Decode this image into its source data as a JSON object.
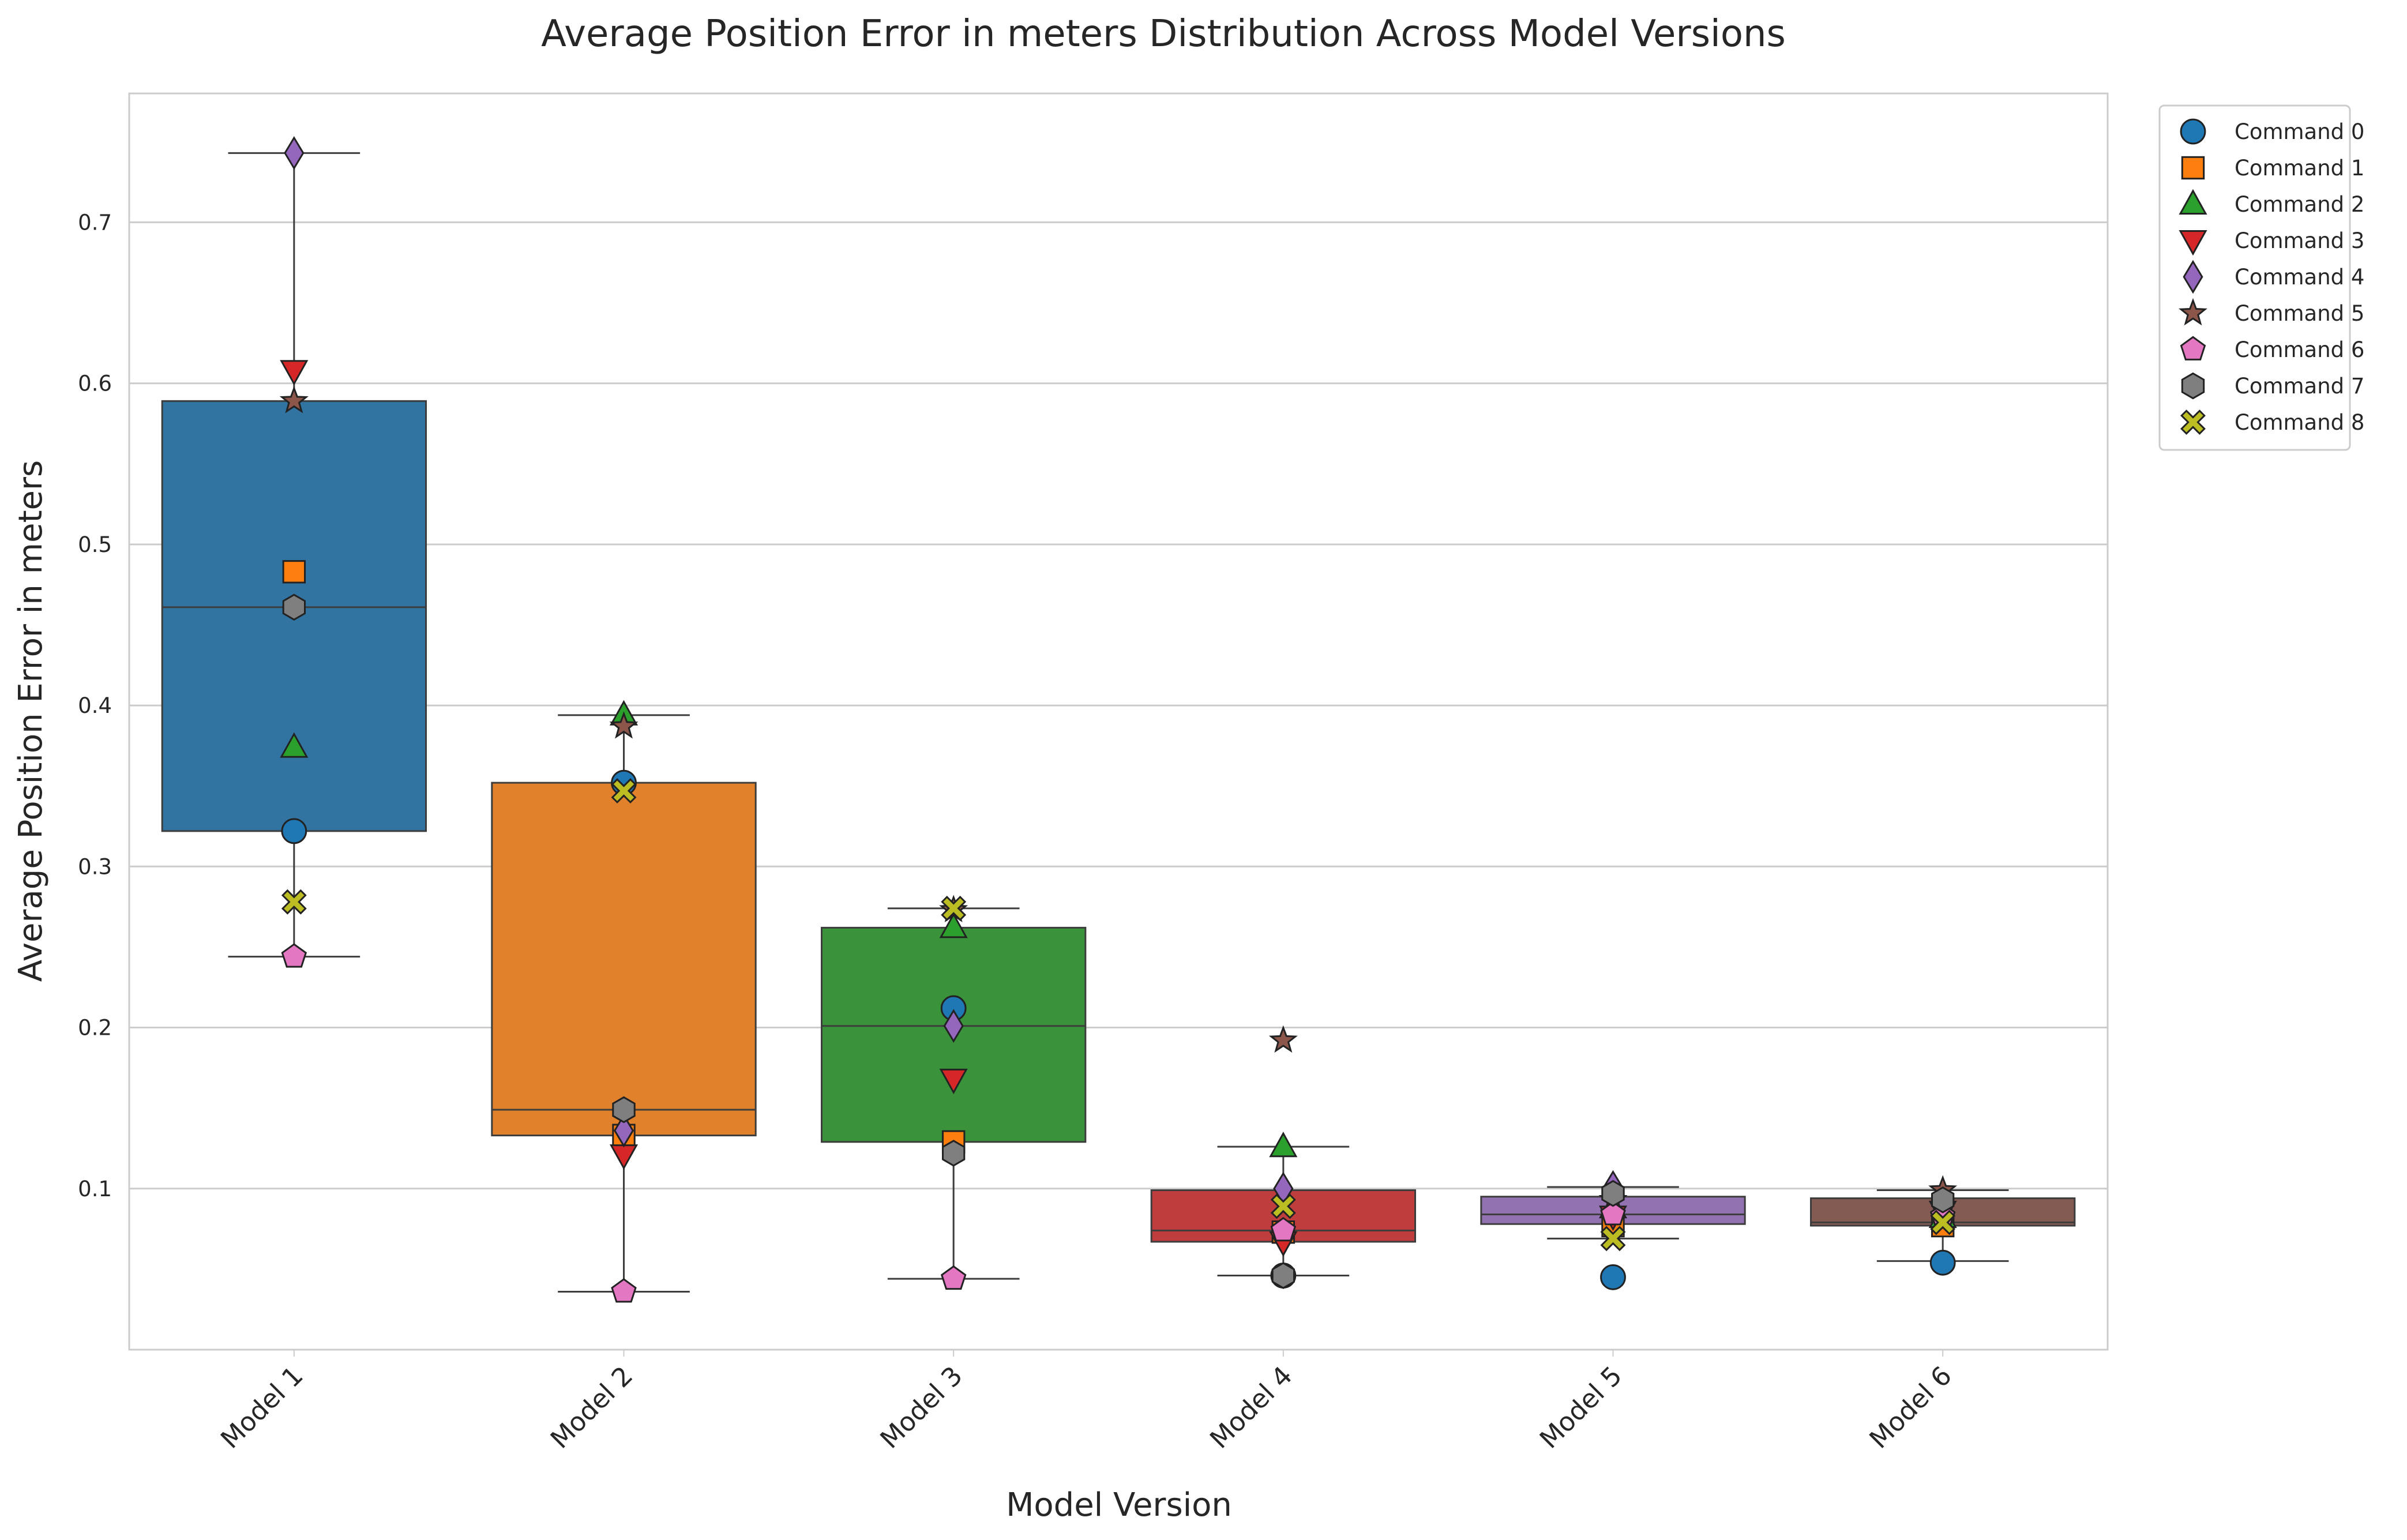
{
  "chart_data": {
    "type": "box",
    "title": "Average Position Error in meters Distribution Across Model Versions",
    "xlabel": "Model Version",
    "ylabel": "Average Position Error in meters",
    "ylim": [
      0.0,
      0.78
    ],
    "yticks": [
      "0.1",
      "0.2",
      "0.3",
      "0.4",
      "0.5",
      "0.6",
      "0.7"
    ],
    "grid": true,
    "legend_position": "outside top-right",
    "categories": [
      "Model 1",
      "Model 2",
      "Model 3",
      "Model 4",
      "Model 5",
      "Model 6"
    ],
    "box_colors": [
      "#3274a1",
      "#e1812c",
      "#3a923a",
      "#c03d3e",
      "#9372b2",
      "#845b53"
    ],
    "boxes": [
      {
        "category": "Model 1",
        "whisker_low": 0.244,
        "q1": 0.322,
        "median": 0.461,
        "q3": 0.589,
        "whisker_high": 0.743
      },
      {
        "category": "Model 2",
        "whisker_low": 0.036,
        "q1": 0.133,
        "median": 0.149,
        "q3": 0.352,
        "whisker_high": 0.394
      },
      {
        "category": "Model 3",
        "whisker_low": 0.044,
        "q1": 0.129,
        "median": 0.201,
        "q3": 0.262,
        "whisker_high": 0.274
      },
      {
        "category": "Model 4",
        "whisker_low": 0.046,
        "q1": 0.067,
        "median": 0.074,
        "q3": 0.099,
        "whisker_high": 0.126
      },
      {
        "category": "Model 5",
        "whisker_low": 0.069,
        "q1": 0.078,
        "median": 0.084,
        "q3": 0.095,
        "whisker_high": 0.101
      },
      {
        "category": "Model 6",
        "whisker_low": 0.055,
        "q1": 0.077,
        "median": 0.079,
        "q3": 0.094,
        "whisker_high": 0.099
      }
    ],
    "series": [
      {
        "name": "Command 0",
        "marker": "circle",
        "color": "#1f77b4",
        "values": [
          0.322,
          0.352,
          0.212,
          0.046,
          0.045,
          0.054
        ]
      },
      {
        "name": "Command 1",
        "marker": "square",
        "color": "#ff7f0e",
        "values": [
          0.483,
          0.133,
          0.129,
          0.073,
          0.077,
          0.077
        ]
      },
      {
        "name": "Command 2",
        "marker": "triangle-up",
        "color": "#2ca02c",
        "values": [
          0.374,
          0.394,
          0.262,
          0.126,
          0.088,
          0.082
        ]
      },
      {
        "name": "Command 3",
        "marker": "triangle-down",
        "color": "#d62728",
        "values": [
          0.608,
          0.121,
          0.168,
          0.067,
          0.083,
          0.086
        ]
      },
      {
        "name": "Command 4",
        "marker": "diamond",
        "color": "#9467bd",
        "values": [
          0.743,
          0.136,
          0.201,
          0.1,
          0.101,
          0.09
        ]
      },
      {
        "name": "Command 5",
        "marker": "star",
        "color": "#8c564b",
        "values": [
          0.589,
          0.387,
          0.273,
          0.192,
          0.093,
          0.099
        ]
      },
      {
        "name": "Command 6",
        "marker": "pentagon",
        "color": "#e377c2",
        "values": [
          0.244,
          0.036,
          0.044,
          0.074,
          0.084,
          0.083
        ]
      },
      {
        "name": "Command 7",
        "marker": "hexagon",
        "color": "#7f7f7f",
        "values": [
          0.461,
          0.149,
          0.122,
          0.046,
          0.097,
          0.093
        ]
      },
      {
        "name": "Command 8",
        "marker": "x",
        "color": "#bcbd22",
        "values": [
          0.278,
          0.347,
          0.274,
          0.089,
          0.069,
          0.079
        ]
      }
    ]
  }
}
